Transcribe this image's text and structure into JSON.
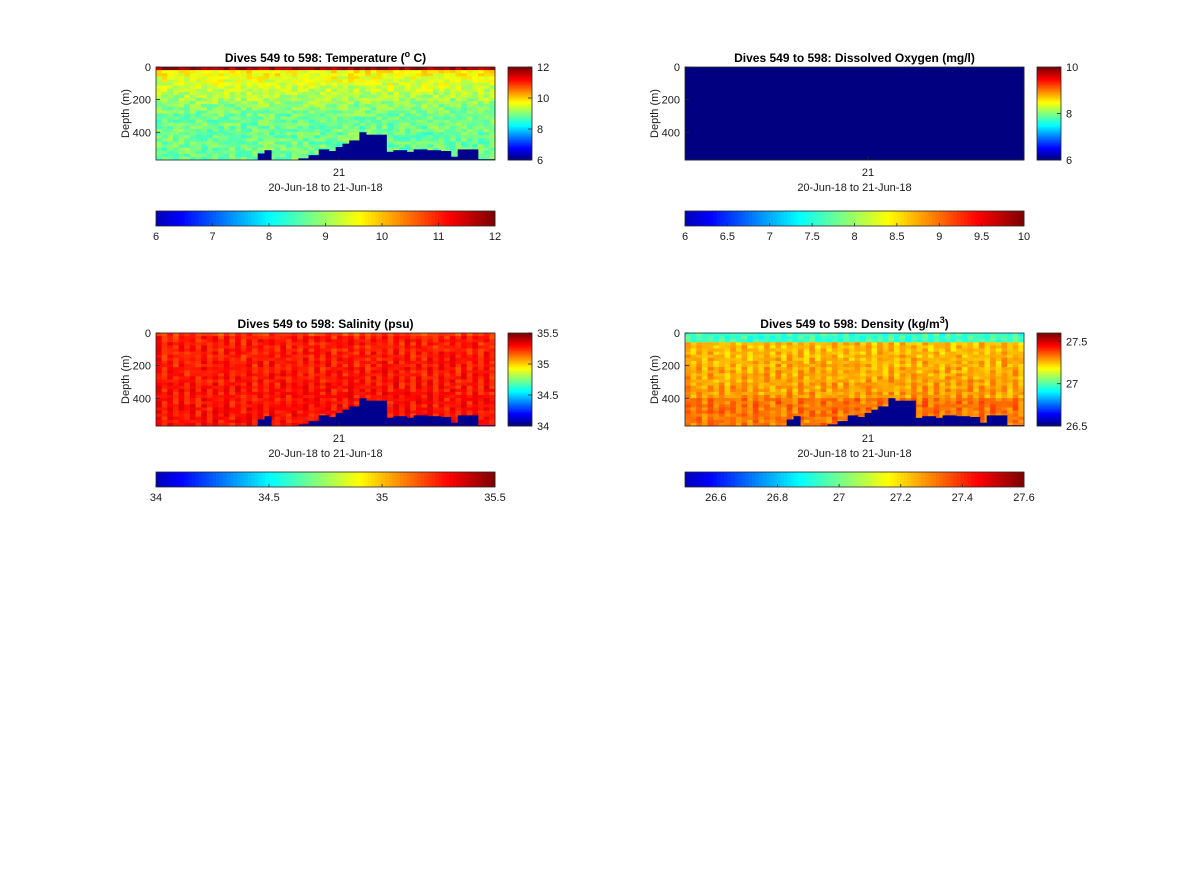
{
  "panels": [
    {
      "id": "temperature",
      "type": "heatmap",
      "title_prefix": "Dives 549 to 598: Temperature (",
      "title_sup": "o",
      "title_suffix": " C)",
      "ylabel": "Depth (m)",
      "yticks": [
        0,
        200,
        400
      ],
      "ylim": [
        0,
        570
      ],
      "xtick_label": "21",
      "xlabel": "20-Jun-18 to 21-Jun-18",
      "clim": [
        6,
        12
      ],
      "side_colorbar_ticks": [
        6,
        8,
        10,
        12
      ],
      "bottom_colorbar_ticks": [
        6,
        7,
        8,
        9,
        10,
        11,
        12
      ],
      "profile": {
        "surface": 11.8,
        "mixed_depth": 20,
        "mid": 9.8,
        "deep_depth": 300,
        "deep": 8.9,
        "noise": 0.35
      },
      "bathymetry": [
        570,
        570,
        570,
        570,
        570,
        570,
        570,
        570,
        570,
        570,
        570,
        570,
        570,
        570,
        570,
        570,
        570,
        570,
        570,
        570,
        570,
        570,
        570,
        570,
        570,
        570,
        570,
        570,
        570,
        570,
        570,
        570,
        570,
        570,
        570,
        570,
        570,
        570,
        570,
        570,
        570,
        570,
        570,
        570,
        570,
        570,
        570,
        570,
        570,
        570,
        570,
        570,
        570,
        570,
        570,
        570,
        570,
        570,
        570,
        570,
        570,
        570,
        570,
        570,
        570,
        570,
        570,
        570,
        570,
        570,
        570,
        570,
        570,
        570,
        570,
        570,
        570,
        570,
        570,
        570,
        570,
        570,
        570,
        570,
        570,
        570,
        570,
        570,
        570,
        570,
        570,
        570,
        570,
        570,
        570,
        570,
        570,
        570,
        570,
        570,
        570,
        570,
        570,
        570,
        570,
        570,
        570,
        570,
        570,
        570,
        570,
        570,
        570,
        570,
        570,
        570,
        570,
        570,
        570,
        570,
        570,
        570,
        570,
        570,
        570,
        570,
        570,
        570,
        570,
        570,
        570,
        570,
        570,
        570,
        570,
        570,
        570,
        570,
        570,
        570,
        570,
        570,
        570,
        570,
        570,
        570,
        570,
        570,
        570,
        570
      ],
      "bathy_seg": [
        [
          0.3,
          0.32,
          530
        ],
        [
          0.32,
          0.34,
          510
        ],
        [
          0.42,
          0.45,
          560
        ],
        [
          0.45,
          0.48,
          540
        ],
        [
          0.48,
          0.51,
          505
        ],
        [
          0.51,
          0.53,
          515
        ],
        [
          0.53,
          0.55,
          490
        ],
        [
          0.55,
          0.57,
          470
        ],
        [
          0.57,
          0.6,
          450
        ],
        [
          0.6,
          0.62,
          400
        ],
        [
          0.62,
          0.68,
          415
        ],
        [
          0.68,
          0.7,
          520
        ],
        [
          0.7,
          0.74,
          510
        ],
        [
          0.74,
          0.76,
          520
        ],
        [
          0.76,
          0.8,
          505
        ],
        [
          0.8,
          0.84,
          510
        ],
        [
          0.84,
          0.87,
          515
        ],
        [
          0.87,
          0.89,
          550
        ],
        [
          0.89,
          0.95,
          505
        ],
        [
          0.95,
          1.0,
          565
        ]
      ]
    },
    {
      "id": "oxygen",
      "type": "heatmap",
      "title_prefix": "Dives 549 to 598: Dissolved Oxygen (mg/l)",
      "title_sup": "",
      "title_suffix": "",
      "ylabel": "Depth (m)",
      "yticks": [
        0,
        200,
        400
      ],
      "ylim": [
        0,
        570
      ],
      "xtick_label": "21",
      "xlabel": "20-Jun-18 to 21-Jun-18",
      "clim": [
        6,
        10
      ],
      "side_colorbar_ticks": [
        6,
        8,
        10
      ],
      "bottom_colorbar_ticks": [
        6,
        6.5,
        7,
        7.5,
        8,
        8.5,
        9,
        9.5,
        10
      ],
      "profile": {
        "uniform": 6.0
      },
      "bathy_seg": []
    },
    {
      "id": "salinity",
      "type": "heatmap",
      "title_prefix": "Dives 549 to 598: Salinity (psu)",
      "title_sup": "",
      "title_suffix": "",
      "ylabel": "Depth (m)",
      "yticks": [
        0,
        200,
        400
      ],
      "ylim": [
        0,
        570
      ],
      "xtick_label": "21",
      "xlabel": "20-Jun-18 to 21-Jun-18",
      "clim": [
        34,
        35.5
      ],
      "side_colorbar_ticks": [
        34,
        34.5,
        35,
        35.5
      ],
      "bottom_colorbar_ticks": [
        34,
        34.5,
        35,
        35.5
      ],
      "profile": {
        "surface": 35.25,
        "mixed_depth": 20,
        "mid": 35.3,
        "deep_depth": 300,
        "deep": 35.32,
        "noise": 0.05,
        "stripe": true
      },
      "bathy_seg": [
        [
          0.3,
          0.32,
          530
        ],
        [
          0.32,
          0.34,
          510
        ],
        [
          0.42,
          0.45,
          560
        ],
        [
          0.45,
          0.48,
          540
        ],
        [
          0.48,
          0.51,
          505
        ],
        [
          0.51,
          0.53,
          515
        ],
        [
          0.53,
          0.55,
          490
        ],
        [
          0.55,
          0.57,
          470
        ],
        [
          0.57,
          0.6,
          450
        ],
        [
          0.6,
          0.62,
          400
        ],
        [
          0.62,
          0.68,
          415
        ],
        [
          0.68,
          0.7,
          520
        ],
        [
          0.7,
          0.74,
          510
        ],
        [
          0.74,
          0.76,
          520
        ],
        [
          0.76,
          0.8,
          505
        ],
        [
          0.8,
          0.84,
          510
        ],
        [
          0.84,
          0.87,
          515
        ],
        [
          0.87,
          0.89,
          550
        ],
        [
          0.89,
          0.95,
          505
        ],
        [
          0.95,
          1.0,
          565
        ]
      ]
    },
    {
      "id": "density",
      "type": "heatmap",
      "title_prefix": "Dives 549 to 598: Density (kg/m",
      "title_sup": "3",
      "title_suffix": ")",
      "ylabel": "Depth (m)",
      "yticks": [
        0,
        200,
        400
      ],
      "ylim": [
        0,
        570
      ],
      "xtick_label": "21",
      "xlabel": "20-Jun-18 to 21-Jun-18",
      "clim": [
        26.5,
        27.6
      ],
      "side_colorbar_ticks": [
        26.5,
        27,
        27.5
      ],
      "bottom_colorbar_ticks": [
        26.6,
        26.8,
        27,
        27.2,
        27.4,
        27.6
      ],
      "profile": {
        "surface": 27.0,
        "mixed_depth": 60,
        "mid": 27.28,
        "deep_depth": 400,
        "deep": 27.36,
        "noise": 0.04,
        "stripe": true
      },
      "bathy_seg": [
        [
          0.3,
          0.32,
          530
        ],
        [
          0.32,
          0.34,
          510
        ],
        [
          0.42,
          0.45,
          560
        ],
        [
          0.45,
          0.48,
          540
        ],
        [
          0.48,
          0.51,
          505
        ],
        [
          0.51,
          0.53,
          515
        ],
        [
          0.53,
          0.55,
          490
        ],
        [
          0.55,
          0.57,
          470
        ],
        [
          0.57,
          0.6,
          450
        ],
        [
          0.6,
          0.62,
          400
        ],
        [
          0.62,
          0.68,
          415
        ],
        [
          0.68,
          0.7,
          520
        ],
        [
          0.7,
          0.74,
          510
        ],
        [
          0.74,
          0.76,
          520
        ],
        [
          0.76,
          0.8,
          505
        ],
        [
          0.8,
          0.84,
          510
        ],
        [
          0.84,
          0.87,
          515
        ],
        [
          0.87,
          0.89,
          550
        ],
        [
          0.89,
          0.95,
          505
        ],
        [
          0.95,
          1.0,
          565
        ]
      ]
    }
  ],
  "chart_data": [
    {
      "type": "heatmap",
      "title": "Dives 549 to 598: Temperature (o C)",
      "ylabel": "Depth (m)",
      "xlabel": "20-Jun-18 to 21-Jun-18",
      "ylim": [
        0,
        570
      ],
      "clim": [
        6,
        12
      ]
    },
    {
      "type": "heatmap",
      "title": "Dives 549 to 598: Dissolved Oxygen (mg/l)",
      "ylabel": "Depth (m)",
      "xlabel": "20-Jun-18 to 21-Jun-18",
      "ylim": [
        0,
        570
      ],
      "clim": [
        6,
        10
      ]
    },
    {
      "type": "heatmap",
      "title": "Dives 549 to 598: Salinity (psu)",
      "ylabel": "Depth (m)",
      "xlabel": "20-Jun-18 to 21-Jun-18",
      "ylim": [
        0,
        570
      ],
      "clim": [
        34,
        35.5
      ]
    },
    {
      "type": "heatmap",
      "title": "Dives 549 to 598: Density (kg/m3)",
      "ylabel": "Depth (m)",
      "xlabel": "20-Jun-18 to 21-Jun-18",
      "ylim": [
        0,
        570
      ],
      "clim": [
        26.5,
        27.6
      ]
    }
  ],
  "colors": {
    "background": "#ffffff",
    "bathymetry": "#00008f"
  }
}
